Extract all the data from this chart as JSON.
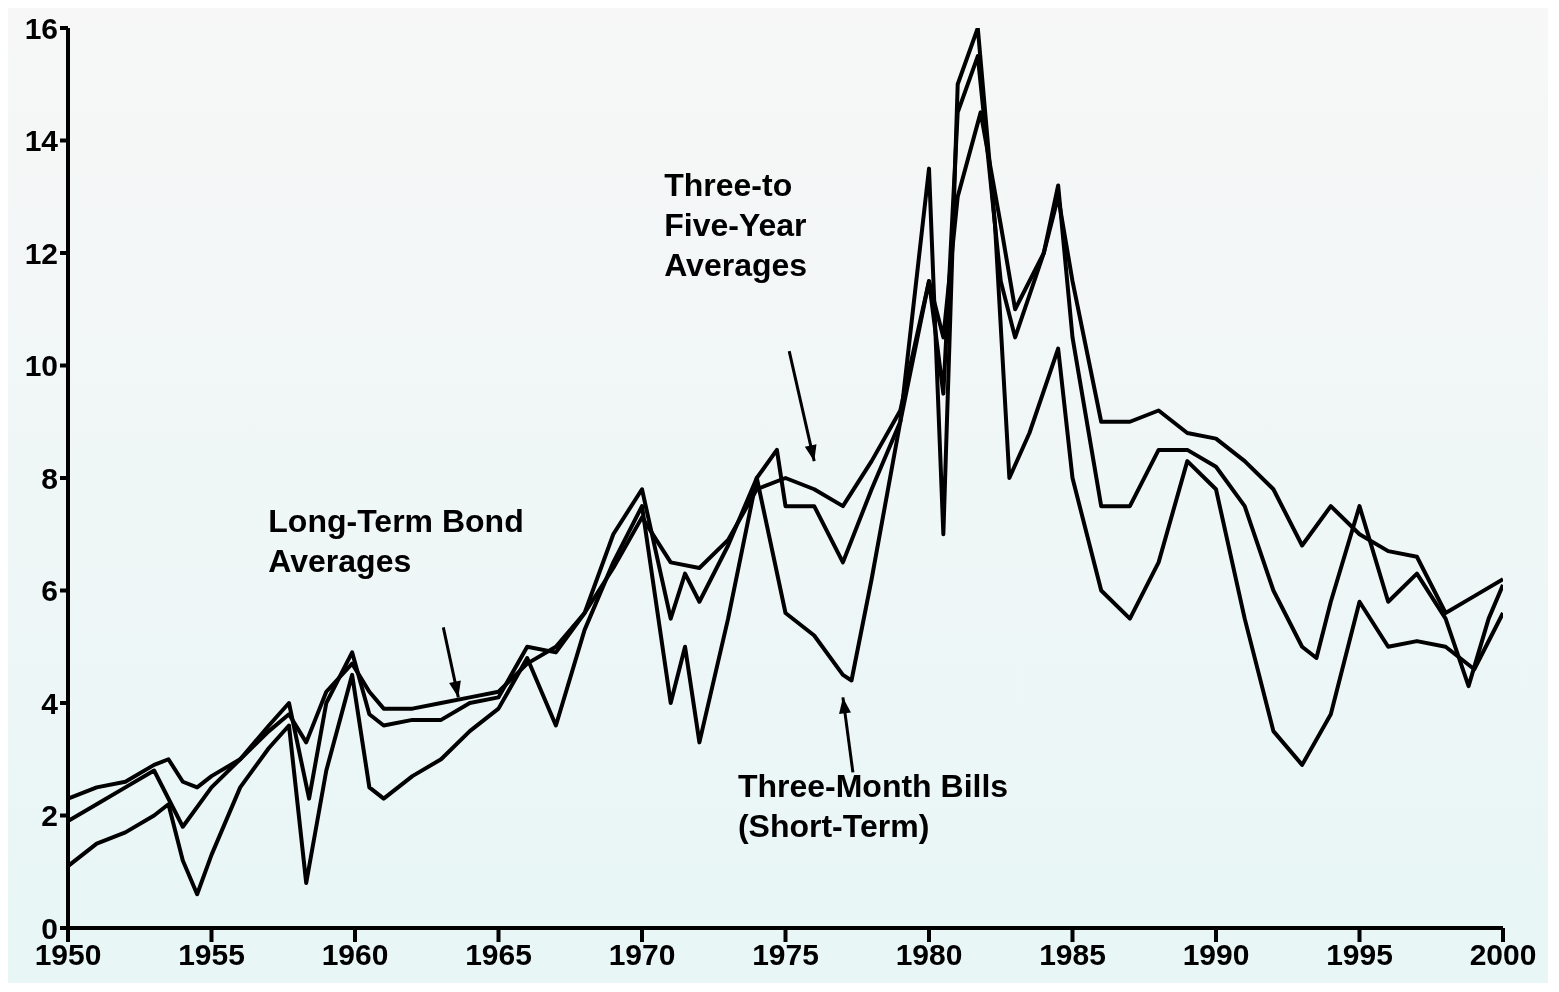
{
  "chart_data": {
    "type": "line",
    "xlim": [
      1950,
      2000
    ],
    "xticks": [
      1950,
      1955,
      1960,
      1965,
      1970,
      1975,
      1980,
      1985,
      1990,
      1995,
      2000
    ],
    "ylim": [
      0,
      16
    ],
    "yticks": [
      0,
      2,
      4,
      6,
      8,
      10,
      12,
      14,
      16
    ],
    "grid": false,
    "legend": false,
    "marker": "none",
    "line_style": "solid",
    "annotations": [
      "Long-Term Bond\nAverages",
      "Three-to\nFive-Year\nAverages",
      "Three-Month Bills\n(Short-Term)"
    ],
    "series": [
      {
        "color": "#000000",
        "x": [
          1950,
          1951,
          1952,
          1953,
          1953.5,
          1954,
          1954.5,
          1955,
          1956,
          1957,
          1957.7,
          1958.3,
          1959,
          1959.9,
          1960.5,
          1961,
          1962,
          1963,
          1964,
          1965,
          1966,
          1967,
          1968,
          1969,
          1970,
          1971,
          1972,
          1973,
          1974,
          1975,
          1976,
          1977,
          1978,
          1979,
          1980,
          1980.5,
          1981,
          1981.8,
          1982.5,
          1983,
          1984,
          1984.5,
          1985,
          1986,
          1987,
          1988,
          1989,
          1990,
          1991,
          1992,
          1993,
          1994,
          1995,
          1996,
          1997,
          1998,
          1999,
          2000
        ],
        "values": [
          2.3,
          2.5,
          2.6,
          2.9,
          3.0,
          2.6,
          2.5,
          2.7,
          3.0,
          3.5,
          3.8,
          3.3,
          4.2,
          4.7,
          4.2,
          3.9,
          3.9,
          4.0,
          4.1,
          4.2,
          4.7,
          5.0,
          5.6,
          6.4,
          7.3,
          6.5,
          6.4,
          6.9,
          7.8,
          8.0,
          7.8,
          7.5,
          8.3,
          9.2,
          11.5,
          10.5,
          13,
          14.5,
          12.5,
          11,
          12,
          13,
          11.5,
          9,
          9.0,
          9.2,
          8.8,
          8.7,
          8.3,
          7.8,
          6.8,
          7.5,
          7.0,
          6.7,
          6.6,
          5.6,
          5.9,
          6.2
        ]
      },
      {
        "color": "#000000",
        "x": [
          1950,
          1951,
          1952,
          1953,
          1954,
          1955,
          1956,
          1957,
          1957.7,
          1958.4,
          1959,
          1959.9,
          1960.5,
          1961,
          1962,
          1963,
          1964,
          1965,
          1966,
          1967,
          1968,
          1969,
          1970,
          1971,
          1971.5,
          1972,
          1973,
          1974,
          1974.7,
          1975,
          1976,
          1977,
          1978,
          1979,
          1980,
          1980.5,
          1981,
          1981.7,
          1982.5,
          1983,
          1984,
          1984.5,
          1985,
          1986,
          1987,
          1988,
          1989,
          1990,
          1991,
          1992,
          1993,
          1993.5,
          1994,
          1995,
          1996,
          1997,
          1998,
          1998.8,
          1999.5,
          2000
        ],
        "values": [
          1.9,
          2.2,
          2.5,
          2.8,
          1.8,
          2.5,
          3.0,
          3.6,
          4.0,
          2.3,
          4.0,
          4.9,
          3.8,
          3.6,
          3.7,
          3.7,
          4.0,
          4.1,
          5.0,
          4.9,
          5.6,
          7.0,
          7.8,
          5.5,
          6.3,
          5.8,
          6.8,
          8.0,
          8.5,
          7.5,
          7.5,
          6.5,
          7.8,
          9.0,
          11.5,
          9.5,
          14.5,
          15.5,
          11.5,
          10.5,
          12.0,
          13.2,
          10.5,
          7.5,
          7.5,
          8.5,
          8.5,
          8.2,
          7.5,
          6.0,
          5.0,
          4.8,
          5.8,
          7.5,
          5.8,
          6.3,
          5.5,
          4.3,
          5.5,
          6.1
        ]
      },
      {
        "color": "#000000",
        "x": [
          1950,
          1951,
          1952,
          1953,
          1953.5,
          1954,
          1954.5,
          1955,
          1956,
          1957,
          1957.7,
          1958.3,
          1959,
          1959.9,
          1960.5,
          1961,
          1962,
          1963,
          1964,
          1965,
          1966,
          1967,
          1968,
          1969,
          1970,
          1971,
          1971.5,
          1972,
          1973,
          1974,
          1975,
          1976,
          1977,
          1977.3,
          1978,
          1979,
          1980,
          1980.5,
          1981,
          1981.7,
          1982.3,
          1982.8,
          1983.5,
          1984.5,
          1985,
          1986,
          1987,
          1988,
          1989,
          1990,
          1991,
          1992,
          1993,
          1994,
          1995,
          1996,
          1997,
          1998,
          1999,
          2000
        ],
        "values": [
          1.1,
          1.5,
          1.7,
          2.0,
          2.2,
          1.2,
          0.6,
          1.3,
          2.5,
          3.2,
          3.6,
          0.8,
          2.8,
          4.5,
          2.5,
          2.3,
          2.7,
          3.0,
          3.5,
          3.9,
          4.8,
          3.6,
          5.3,
          6.5,
          7.5,
          4.0,
          5.0,
          3.3,
          5.5,
          8.0,
          5.6,
          5.2,
          4.5,
          4.4,
          6.2,
          9.0,
          13.5,
          7.0,
          15.0,
          16.0,
          12.5,
          8.0,
          8.8,
          10.3,
          8.0,
          6.0,
          5.5,
          6.5,
          8.3,
          7.8,
          5.5,
          3.5,
          2.9,
          3.8,
          5.8,
          5.0,
          5.1,
          5.0,
          4.6,
          5.6
        ]
      }
    ]
  }
}
